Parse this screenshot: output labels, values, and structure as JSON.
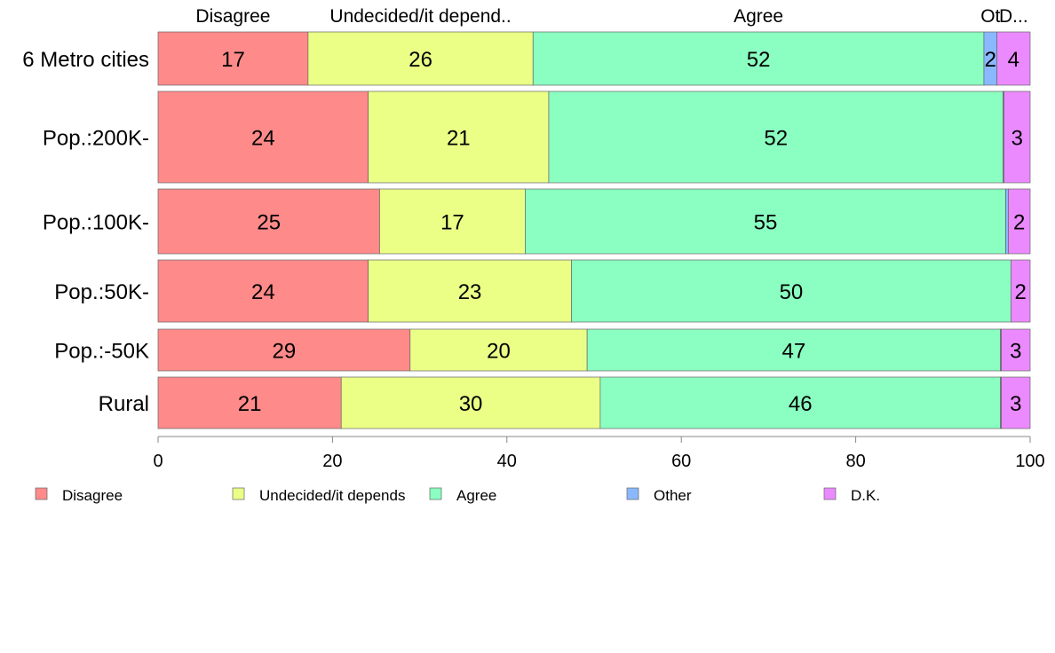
{
  "chart_data": {
    "type": "bar",
    "orientation": "horizontal",
    "stacked": true,
    "categories": [
      "6 Metro cities",
      "Pop.:200K-",
      "Pop.:100K-",
      "Pop.:50K-",
      "Pop.:-50K",
      "Rural"
    ],
    "series": [
      {
        "name": "Disagree",
        "color": "#FF8A8A",
        "values": [
          17.2,
          24.1,
          25.4,
          24.1,
          28.9,
          21.0
        ],
        "labels": [
          "17",
          "24",
          "25",
          "24",
          "29",
          "21"
        ]
      },
      {
        "name": "Undecided/it depends",
        "color": "#EBFF87",
        "values": [
          25.8,
          20.7,
          16.7,
          23.3,
          20.3,
          29.7
        ],
        "labels": [
          "26",
          "21",
          "17",
          "23",
          "20",
          "30"
        ]
      },
      {
        "name": "Agree",
        "color": "#8AFFC1",
        "values": [
          51.7,
          52.1,
          55.1,
          50.4,
          47.4,
          45.9
        ],
        "labels": [
          "52",
          "52",
          "55",
          "50",
          "47",
          "46"
        ]
      },
      {
        "name": "Other",
        "color": "#8AB8FF",
        "values": [
          1.5,
          0.1,
          0.3,
          0.0,
          0.1,
          0.1
        ],
        "labels": [
          "2",
          "",
          "",
          "",
          "",
          ""
        ]
      },
      {
        "name": "D.K.",
        "color": "#EB8AFF",
        "values": [
          3.8,
          3.0,
          2.5,
          2.2,
          3.3,
          3.3
        ],
        "labels": [
          "4",
          "3",
          "2",
          "2",
          "3",
          "3"
        ]
      }
    ],
    "top_labels": [
      "Disagree",
      "Undecided/it depend..",
      "Agree",
      "Ot",
      "D..."
    ],
    "xlim": [
      0,
      100
    ],
    "xticks": [
      0,
      20,
      40,
      60,
      80,
      100
    ],
    "legend_position": "bottom",
    "grid": false
  }
}
